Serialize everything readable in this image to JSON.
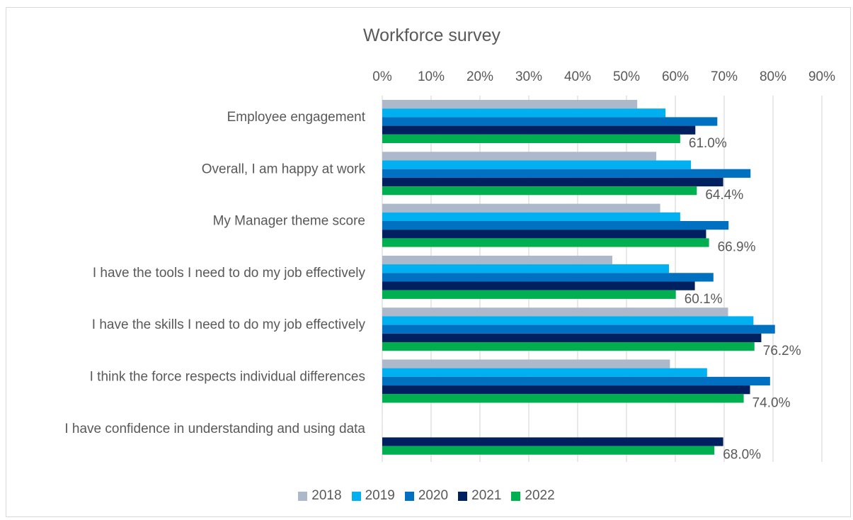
{
  "chart_data": {
    "type": "bar",
    "orientation": "horizontal",
    "title": "Workforce survey",
    "x_ticks": [
      "0%",
      "10%",
      "20%",
      "30%",
      "40%",
      "50%",
      "60%",
      "70%",
      "80%",
      "90%"
    ],
    "xlim": [
      0,
      90
    ],
    "x_axis_position": "top",
    "grid": true,
    "legend_position": "bottom",
    "categories": [
      "Employee engagement",
      "Overall, I am happy at work",
      "My Manager theme score",
      "I have the tools I need to do my job effectively",
      "I have the skills I need to do my job effectively",
      "I think the force respects individual differences",
      "I have confidence in understanding and using data"
    ],
    "series": [
      {
        "name": "2018",
        "color": "#adb9ca",
        "values": [
          52.2,
          56.1,
          56.9,
          47.1,
          70.8,
          58.9,
          null
        ]
      },
      {
        "name": "2019",
        "color": "#00b0f0",
        "values": [
          58.0,
          63.2,
          61.0,
          58.7,
          76.0,
          66.5,
          null
        ]
      },
      {
        "name": "2020",
        "color": "#0070c0",
        "values": [
          68.6,
          75.4,
          70.9,
          67.8,
          80.4,
          79.4,
          null
        ]
      },
      {
        "name": "2021",
        "color": "#002060",
        "values": [
          64.1,
          69.8,
          66.3,
          64.0,
          77.6,
          75.3,
          69.8
        ]
      },
      {
        "name": "2022",
        "color": "#00b050",
        "values": [
          61.0,
          64.4,
          66.9,
          60.1,
          76.2,
          74.0,
          68.0
        ]
      }
    ],
    "data_labels": [
      "61.0%",
      "64.4%",
      "66.9%",
      "60.1%",
      "76.2%",
      "74.0%",
      "68.0%"
    ]
  }
}
